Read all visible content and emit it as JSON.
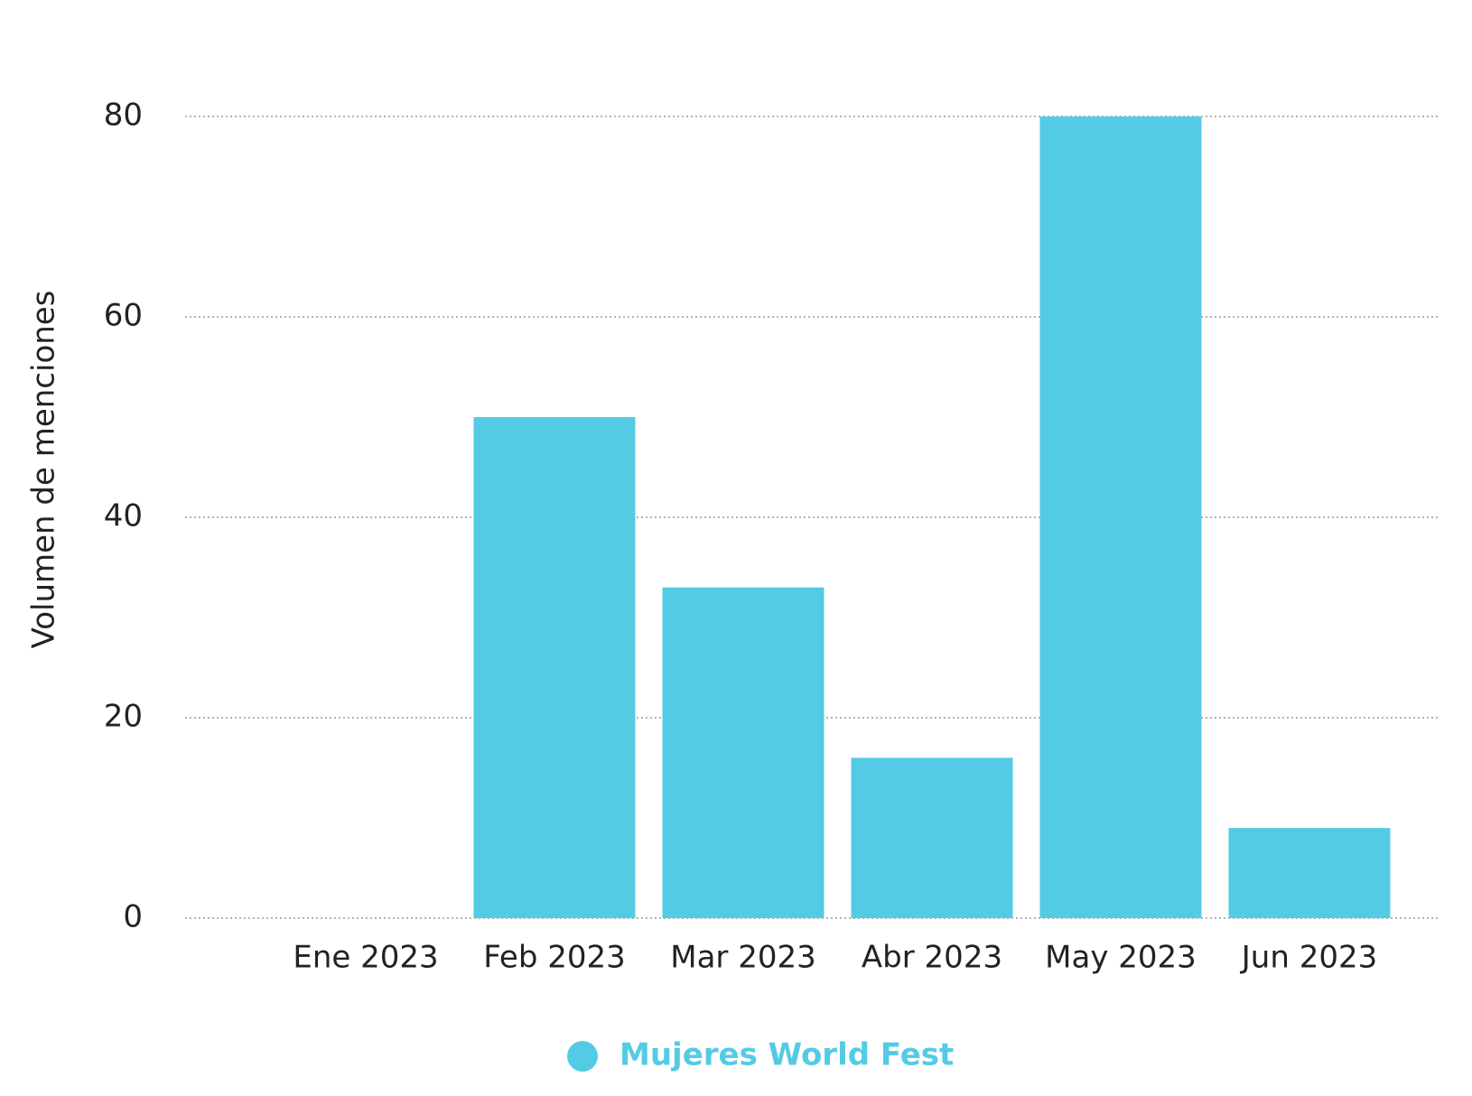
{
  "chart_data": {
    "type": "bar",
    "y_label": "Volumen de menciones",
    "categories": [
      "Ene 2023",
      "Feb 2023",
      "Mar 2023",
      "Abr 2023",
      "May 2023",
      "Jun 2023"
    ],
    "series": [
      {
        "name": "Mujeres World Fest",
        "color": "#54cbe5",
        "values": [
          0,
          50,
          33,
          16,
          80,
          9
        ]
      }
    ],
    "ylim": [
      0,
      80
    ],
    "yticks": [
      0,
      20,
      40,
      60,
      80
    ],
    "grid": true,
    "legend": "bottom"
  }
}
